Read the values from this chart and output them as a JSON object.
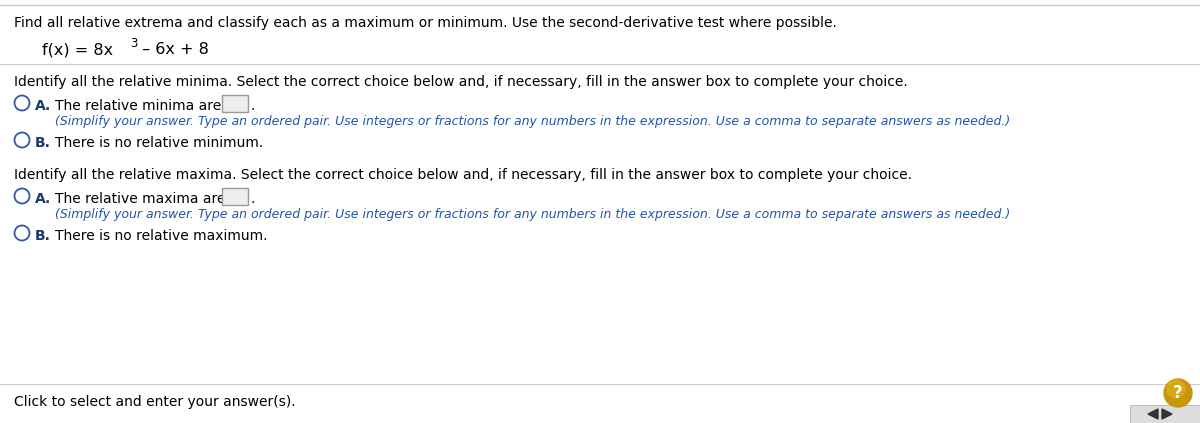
{
  "bg_color": "#ffffff",
  "border_color": "#cccccc",
  "text_color_black": "#000000",
  "text_color_blue": "#1a3a6b",
  "text_color_blue2": "#2255aa",
  "radio_edge_color": "#3355aa",
  "instruction": "Find all relative extrema and classify each as a maximum or minimum. Use the second-derivative test where possible.",
  "minima_prompt": "Identify all the relative minima. Select the correct choice below and, if necessary, fill in the answer box to complete your choice.",
  "maxima_prompt": "Identify all the relative maxima. Select the correct choice below and, if necessary, fill in the answer box to complete your choice.",
  "option_A_minima_main": "The relative minima are",
  "option_A_minima_sub": "(Simplify your answer. Type an ordered pair. Use integers or fractions for any numbers in the expression. Use a comma to separate answers as needed.)",
  "option_B_minima": "There is no relative minimum.",
  "option_A_maxima_main": "The relative maxima are",
  "option_A_maxima_sub": "(Simplify your answer. Type an ordered pair. Use integers or fractions for any numbers in the expression. Use a comma to separate answers as needed.)",
  "option_B_maxima": "There is no relative maximum.",
  "footer": "Click to select and enter your answer(s).",
  "help_bg": "#c8960c",
  "help_text": "#ffffff",
  "nav_bg": "#dddddd",
  "nav_arrow": "#333333",
  "label_A": "A.",
  "label_B": "B."
}
